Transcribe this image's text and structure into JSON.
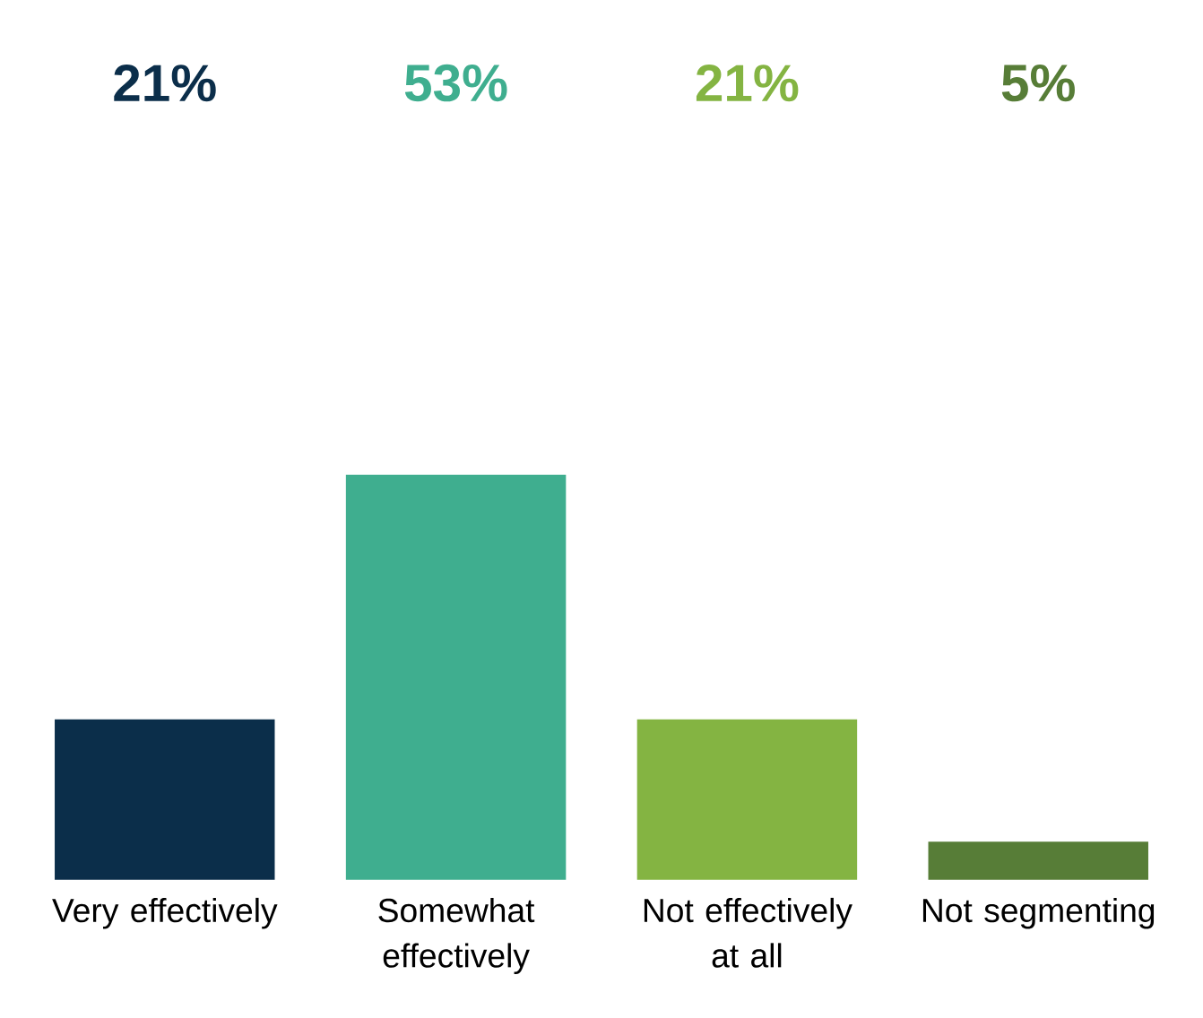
{
  "chart_data": {
    "type": "bar",
    "categories": [
      "Very effectively",
      "Somewhat effectively",
      "Not effectively at all",
      "Not segmenting"
    ],
    "values": [
      21,
      53,
      21,
      5
    ],
    "colors": [
      "#0b2e4a",
      "#3fae8f",
      "#84b442",
      "#577d37"
    ],
    "value_labels": [
      "21%",
      "53%",
      "21%",
      "5%"
    ]
  }
}
